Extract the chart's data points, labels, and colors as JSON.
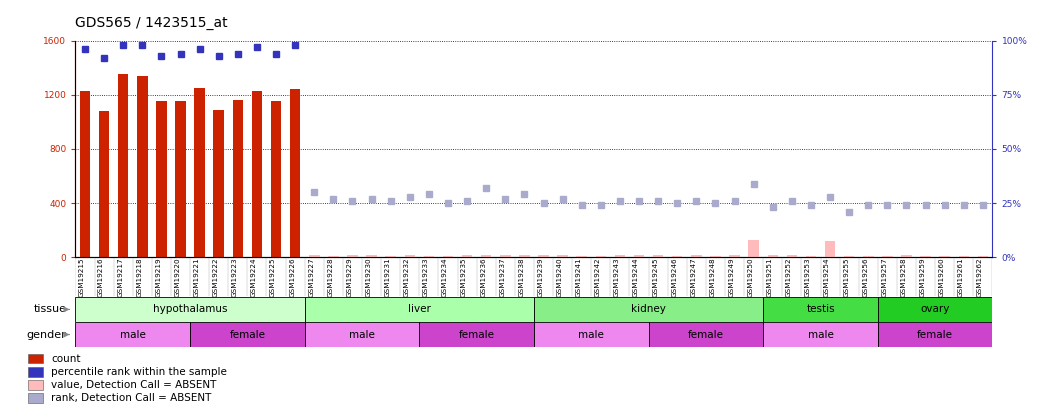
{
  "title": "GDS565 / 1423515_at",
  "samples": [
    "GSM19215",
    "GSM19216",
    "GSM19217",
    "GSM19218",
    "GSM19219",
    "GSM19220",
    "GSM19221",
    "GSM19222",
    "GSM19223",
    "GSM19224",
    "GSM19225",
    "GSM19226",
    "GSM19227",
    "GSM19228",
    "GSM19229",
    "GSM19230",
    "GSM19231",
    "GSM19232",
    "GSM19233",
    "GSM19234",
    "GSM19235",
    "GSM19236",
    "GSM19237",
    "GSM19238",
    "GSM19239",
    "GSM19240",
    "GSM19241",
    "GSM19242",
    "GSM19243",
    "GSM19244",
    "GSM19245",
    "GSM19246",
    "GSM19247",
    "GSM19248",
    "GSM19249",
    "GSM19250",
    "GSM19251",
    "GSM19252",
    "GSM19253",
    "GSM19254",
    "GSM19255",
    "GSM19256",
    "GSM19257",
    "GSM19258",
    "GSM19259",
    "GSM19260",
    "GSM19261",
    "GSM19262"
  ],
  "count_present": [
    1230,
    1080,
    1350,
    1340,
    1150,
    1150,
    1250,
    1090,
    1160,
    1230,
    1150,
    1240,
    null,
    null,
    null,
    null,
    null,
    null,
    null,
    null,
    null,
    null,
    null,
    null,
    null,
    null,
    null,
    null,
    null,
    null,
    null,
    null,
    null,
    null,
    null,
    null,
    null,
    null,
    null,
    null,
    null,
    null,
    null,
    null,
    null,
    null,
    null,
    null
  ],
  "count_absent": [
    null,
    null,
    null,
    null,
    null,
    null,
    null,
    null,
    null,
    null,
    null,
    null,
    18,
    12,
    14,
    15,
    10,
    16,
    12,
    10,
    13,
    18,
    14,
    14,
    13,
    14,
    11,
    12,
    13,
    14,
    13,
    12,
    15,
    12,
    14,
    130,
    14,
    16,
    12,
    120,
    12,
    12,
    12,
    15,
    12,
    12,
    12,
    10
  ],
  "rank_present": [
    96,
    92,
    98,
    98,
    93,
    94,
    96,
    93,
    94,
    97,
    94,
    98,
    null,
    null,
    null,
    null,
    null,
    null,
    null,
    null,
    null,
    null,
    null,
    null,
    null,
    null,
    null,
    null,
    null,
    null,
    null,
    null,
    null,
    null,
    null,
    null,
    null,
    null,
    null,
    null,
    null,
    null,
    null,
    null,
    null,
    null,
    null,
    null
  ],
  "rank_absent": [
    null,
    null,
    null,
    null,
    null,
    null,
    null,
    null,
    null,
    null,
    null,
    null,
    30,
    27,
    26,
    27,
    26,
    28,
    29,
    25,
    26,
    32,
    27,
    29,
    25,
    27,
    24,
    24,
    26,
    26,
    26,
    25,
    26,
    25,
    26,
    34,
    23,
    26,
    24,
    28,
    21,
    24,
    24,
    24,
    24,
    24,
    24,
    24
  ],
  "tissues": [
    {
      "name": "hypothalamus",
      "start": 0,
      "end": 12,
      "color": "#ccffcc"
    },
    {
      "name": "liver",
      "start": 12,
      "end": 24,
      "color": "#aaffaa"
    },
    {
      "name": "kidney",
      "start": 24,
      "end": 36,
      "color": "#88ee88"
    },
    {
      "name": "testis",
      "start": 36,
      "end": 42,
      "color": "#44dd44"
    },
    {
      "name": "ovary",
      "start": 42,
      "end": 48,
      "color": "#22cc22"
    }
  ],
  "genders": [
    {
      "name": "male",
      "start": 0,
      "end": 6,
      "color": "#ee88ee"
    },
    {
      "name": "female",
      "start": 6,
      "end": 12,
      "color": "#cc44cc"
    },
    {
      "name": "male",
      "start": 12,
      "end": 18,
      "color": "#ee88ee"
    },
    {
      "name": "female",
      "start": 18,
      "end": 24,
      "color": "#cc44cc"
    },
    {
      "name": "male",
      "start": 24,
      "end": 30,
      "color": "#ee88ee"
    },
    {
      "name": "female",
      "start": 30,
      "end": 36,
      "color": "#cc44cc"
    },
    {
      "name": "male",
      "start": 36,
      "end": 42,
      "color": "#ee88ee"
    },
    {
      "name": "female",
      "start": 42,
      "end": 48,
      "color": "#cc44cc"
    }
  ],
  "ylim_left": [
    0,
    1600
  ],
  "ylim_right": [
    0,
    100
  ],
  "yticks_left": [
    0,
    400,
    800,
    1200,
    1600
  ],
  "yticks_right": [
    0,
    25,
    50,
    75,
    100
  ],
  "bar_color": "#cc2200",
  "rank_color": "#3333bb",
  "count_absent_color": "#ffbbbb",
  "rank_absent_color": "#aaaacc",
  "title_fontsize": 10,
  "tick_fontsize": 6.5,
  "label_fontsize": 8,
  "legend_fontsize": 7.5
}
